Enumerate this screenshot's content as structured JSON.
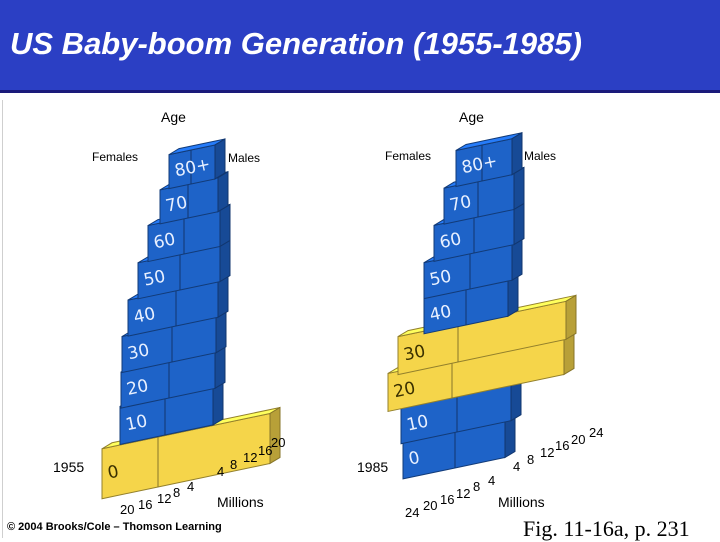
{
  "title": "US Baby-boom Generation (1955-1985)",
  "colors": {
    "title_bar": "#2b3fc4",
    "boomer_bars": "#f5d54a",
    "other_bars": "#1e63c8"
  },
  "pyramid_1955": {
    "year_label": "1955",
    "axis_label": "Age",
    "females_label": "Females",
    "males_label": "Males",
    "units_label": "Millions",
    "age_groups": [
      "0",
      "10",
      "20",
      "30",
      "40",
      "50",
      "60",
      "70",
      "80+"
    ],
    "boomer_groups": [
      "0"
    ],
    "female_ticks": [
      "20",
      "16",
      "12",
      "8",
      "4"
    ],
    "male_ticks": [
      "4",
      "8",
      "12",
      "16",
      "20"
    ]
  },
  "pyramid_1985": {
    "year_label": "1985",
    "axis_label": "Age",
    "females_label": "Females",
    "males_label": "Males",
    "units_label": "Millions",
    "age_groups": [
      "0",
      "10",
      "20",
      "30",
      "40",
      "50",
      "60",
      "70",
      "80+"
    ],
    "boomer_groups": [
      "20",
      "30"
    ],
    "female_ticks": [
      "24",
      "20",
      "16",
      "12",
      "8",
      "4"
    ],
    "male_ticks": [
      "4",
      "8",
      "12",
      "16",
      "20",
      "24"
    ]
  },
  "copyright": "© 2004 Brooks/Cole – Thomson Learning",
  "figure_ref": "Fig. 11-16a, p. 231"
}
